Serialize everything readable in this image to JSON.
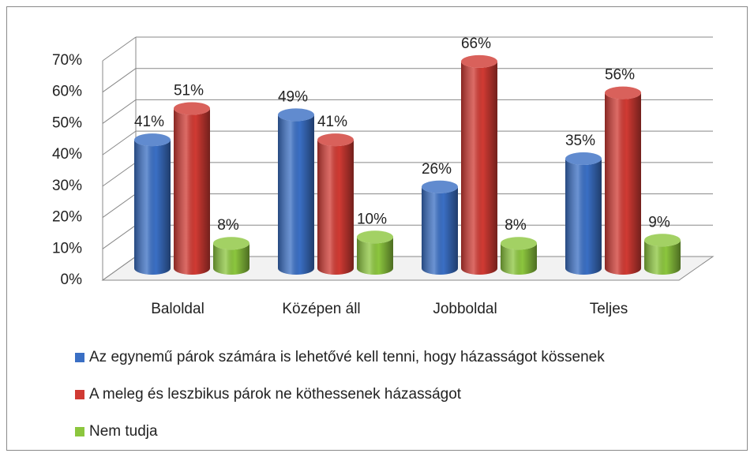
{
  "chart_data": {
    "type": "bar",
    "categories": [
      "Baloldal",
      "Középen áll",
      "Jobboldal",
      "Teljes"
    ],
    "series": [
      {
        "name": "Az egynemű párok számára is lehetővé kell tenni, hogy házasságot kössenek",
        "color": "#3a6fc4",
        "values": [
          41,
          49,
          26,
          35
        ],
        "value_labels": [
          "41%",
          "49%",
          "26%",
          "35%"
        ]
      },
      {
        "name": "A meleg és leszbikus párok ne köthessenek házasságot",
        "color": "#d03a33",
        "values": [
          51,
          41,
          66,
          56
        ],
        "value_labels": [
          "51%",
          "41%",
          "66%",
          "56%"
        ]
      },
      {
        "name": "Nem tudja",
        "color": "#8cc63e",
        "values": [
          8,
          10,
          8,
          9
        ],
        "value_labels": [
          "8%",
          "10%",
          "8%",
          "9%"
        ]
      }
    ],
    "ylim": [
      0,
      70
    ],
    "yticks": [
      {
        "value": 0,
        "label": "0%"
      },
      {
        "value": 10,
        "label": "10%"
      },
      {
        "value": 20,
        "label": "20%"
      },
      {
        "value": 30,
        "label": "30%"
      },
      {
        "value": 40,
        "label": "40%"
      },
      {
        "value": 50,
        "label": "50%"
      },
      {
        "value": 60,
        "label": "60%"
      },
      {
        "value": 70,
        "label": "70%"
      }
    ],
    "grid": true,
    "legend": "bottom"
  }
}
